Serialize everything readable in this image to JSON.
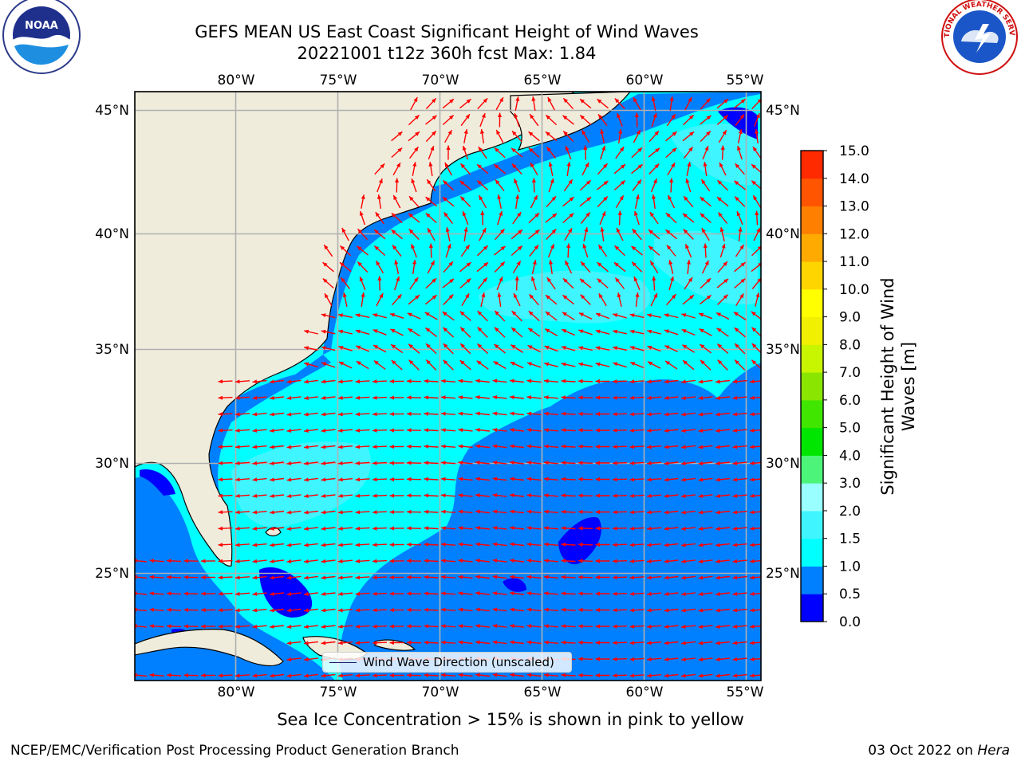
{
  "header": {
    "title_line1": "GEFS MEAN US East Coast Significant Height of Wind Waves",
    "title_line2": "20221001 t12z 360h fcst   Max: 1.84"
  },
  "logos": {
    "left": "noaa-logo",
    "right": "national-weather-service-logo",
    "left_text": "NOAA",
    "right_ring_text": "NATIONAL WEATHER SERVICE"
  },
  "map": {
    "lon_labels": [
      "80°W",
      "75°W",
      "70°W",
      "65°W",
      "60°W",
      "55°W"
    ],
    "lat_labels": [
      "45°N",
      "40°N",
      "35°N",
      "30°N",
      "25°N"
    ],
    "lon_range": [
      -85,
      -54.3
    ],
    "lat_range": [
      20.2,
      45.9
    ],
    "gridlines": true,
    "land_color": "#efecdc",
    "arrow_color": "#ff0000"
  },
  "legend": {
    "label": "Wind Wave Direction (unscaled)",
    "position": "lower-center"
  },
  "colorbar": {
    "title": "Significant Height of Wind Waves [m]",
    "tick_labels": [
      "0.0",
      "0.5",
      "1.0",
      "1.5",
      "2.0",
      "3.0",
      "4.0",
      "5.0",
      "6.0",
      "7.0",
      "8.0",
      "9.0",
      "10.0",
      "11.0",
      "12.0",
      "13.0",
      "14.0",
      "15.0"
    ],
    "colors": [
      "#0000ff",
      "#0080ff",
      "#00ffff",
      "#3ff5ff",
      "#99ffff",
      "#4cf57a",
      "#00e600",
      "#40e600",
      "#8ae600",
      "#c8f500",
      "#f0f000",
      "#ffff00",
      "#ffd500",
      "#ffaa00",
      "#ff8000",
      "#ff5500",
      "#ff2a00"
    ]
  },
  "caption": "Sea Ice Concentration > 15% is shown in pink to yellow",
  "footer": {
    "left": "NCEP/EMC/Verification Post Processing Product Generation Branch",
    "right_date": "03 Oct 2022 on",
    "right_host": "Hera"
  }
}
